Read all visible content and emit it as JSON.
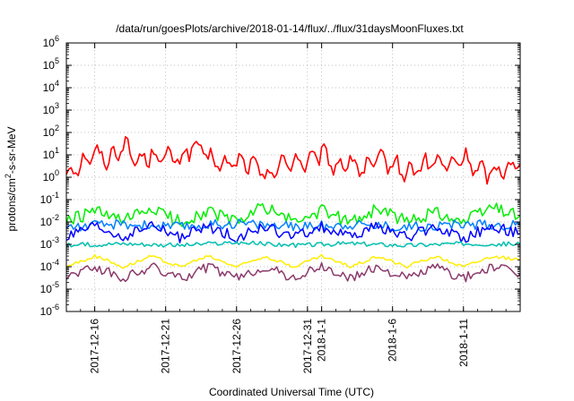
{
  "chart_data": {
    "type": "line",
    "title": "/data/run/goesPlots/archive/2018-01-14/flux/../flux/31daysMoonFluxes.txt",
    "xlabel": "Coordinated Universal Time (UTC)",
    "ylabel": "protons/cm2-s-sr-MeV",
    "y_scale": "log",
    "ylim": [
      1e-06,
      1000000.0
    ],
    "y_ticks": [
      {
        "exp": "-6",
        "value": 1e-06
      },
      {
        "exp": "-5",
        "value": 1e-05
      },
      {
        "exp": "-4",
        "value": 0.0001
      },
      {
        "exp": "-3",
        "value": 0.001
      },
      {
        "exp": "-2",
        "value": 0.01
      },
      {
        "exp": "-1",
        "value": 0.1
      },
      {
        "exp": "0",
        "value": 1
      },
      {
        "exp": "1",
        "value": 10
      },
      {
        "exp": "2",
        "value": 100
      },
      {
        "exp": "3",
        "value": 1000
      },
      {
        "exp": "4",
        "value": 10000
      },
      {
        "exp": "5",
        "value": 100000
      },
      {
        "exp": "6",
        "value": 1000000
      }
    ],
    "xlim": [
      "2017-12-14",
      "2018-01-15"
    ],
    "x_ticks": [
      {
        "label": "2017-12-16",
        "date": "2017-12-16"
      },
      {
        "label": "2017-12-21",
        "date": "2017-12-21"
      },
      {
        "label": "2017-12-26",
        "date": "2017-12-26"
      },
      {
        "label": "2017-12-31",
        "date": "2017-12-31"
      },
      {
        "label": "2018-1-1",
        "date": "2018-01-01"
      },
      {
        "label": "2018-1-6",
        "date": "2018-01-06"
      },
      {
        "label": "2018-1-11",
        "date": "2018-01-11"
      }
    ],
    "grid": true,
    "series": [
      {
        "color": "#ff0000",
        "values": [
          {
            "x": "2017-12-14",
            "y": 1.5
          },
          {
            "x": "2017-12-15",
            "y": 4
          },
          {
            "x": "2017-12-16",
            "y": 12
          },
          {
            "x": "2017-12-17",
            "y": 6
          },
          {
            "x": "2017-12-18",
            "y": 30
          },
          {
            "x": "2017-12-19",
            "y": 5
          },
          {
            "x": "2017-12-20",
            "y": 10
          },
          {
            "x": "2017-12-21",
            "y": 8
          },
          {
            "x": "2017-12-22",
            "y": 6
          },
          {
            "x": "2017-12-23",
            "y": 28
          },
          {
            "x": "2017-12-24",
            "y": 8
          },
          {
            "x": "2017-12-25",
            "y": 3
          },
          {
            "x": "2017-12-26",
            "y": 5
          },
          {
            "x": "2017-12-27",
            "y": 4
          },
          {
            "x": "2017-12-28",
            "y": 1.2
          },
          {
            "x": "2017-12-29",
            "y": 3
          },
          {
            "x": "2017-12-30",
            "y": 6
          },
          {
            "x": "2017-12-31",
            "y": 4
          },
          {
            "x": "2018-01-01",
            "y": 12
          },
          {
            "x": "2018-01-02",
            "y": 3
          },
          {
            "x": "2018-01-03",
            "y": 5
          },
          {
            "x": "2018-01-04",
            "y": 2
          },
          {
            "x": "2018-01-05",
            "y": 6
          },
          {
            "x": "2018-01-06",
            "y": 4
          },
          {
            "x": "2018-01-07",
            "y": 1.5
          },
          {
            "x": "2018-01-08",
            "y": 3
          },
          {
            "x": "2018-01-09",
            "y": 5
          },
          {
            "x": "2018-01-10",
            "y": 3
          },
          {
            "x": "2018-01-11",
            "y": 8
          },
          {
            "x": "2018-01-12",
            "y": 2
          },
          {
            "x": "2018-01-13",
            "y": 1.5
          },
          {
            "x": "2018-01-14",
            "y": 3
          },
          {
            "x": "2018-01-15",
            "y": 4
          }
        ]
      },
      {
        "color": "#00ee00",
        "values": [
          {
            "x": "2017-12-14",
            "y": 0.01
          },
          {
            "x": "2017-12-16",
            "y": 0.03
          },
          {
            "x": "2017-12-18",
            "y": 0.01
          },
          {
            "x": "2017-12-20",
            "y": 0.04
          },
          {
            "x": "2017-12-22",
            "y": 0.01
          },
          {
            "x": "2017-12-24",
            "y": 0.03
          },
          {
            "x": "2017-12-26",
            "y": 0.01
          },
          {
            "x": "2017-12-28",
            "y": 0.05
          },
          {
            "x": "2017-12-30",
            "y": 0.01
          },
          {
            "x": "2018-01-01",
            "y": 0.03
          },
          {
            "x": "2018-01-03",
            "y": 0.01
          },
          {
            "x": "2018-01-05",
            "y": 0.04
          },
          {
            "x": "2018-01-07",
            "y": 0.01
          },
          {
            "x": "2018-01-09",
            "y": 0.03
          },
          {
            "x": "2018-01-11",
            "y": 0.01
          },
          {
            "x": "2018-01-13",
            "y": 0.05
          },
          {
            "x": "2018-01-15",
            "y": 0.02
          }
        ]
      },
      {
        "color": "#0080ff",
        "values": [
          {
            "x": "2017-12-14",
            "y": 0.006
          },
          {
            "x": "2017-12-18",
            "y": 0.008
          },
          {
            "x": "2017-12-22",
            "y": 0.006
          },
          {
            "x": "2017-12-26",
            "y": 0.009
          },
          {
            "x": "2017-12-30",
            "y": 0.006
          },
          {
            "x": "2018-01-03",
            "y": 0.008
          },
          {
            "x": "2018-01-07",
            "y": 0.006
          },
          {
            "x": "2018-01-11",
            "y": 0.008
          },
          {
            "x": "2018-01-15",
            "y": 0.007
          }
        ]
      },
      {
        "color": "#0000ff",
        "values": [
          {
            "x": "2017-12-14",
            "y": 0.002
          },
          {
            "x": "2017-12-16",
            "y": 0.006
          },
          {
            "x": "2017-12-18",
            "y": 0.002
          },
          {
            "x": "2017-12-20",
            "y": 0.007
          },
          {
            "x": "2017-12-22",
            "y": 0.002
          },
          {
            "x": "2017-12-24",
            "y": 0.006
          },
          {
            "x": "2017-12-26",
            "y": 0.002
          },
          {
            "x": "2017-12-28",
            "y": 0.006
          },
          {
            "x": "2017-12-30",
            "y": 0.002
          },
          {
            "x": "2018-01-01",
            "y": 0.006
          },
          {
            "x": "2018-01-03",
            "y": 0.002
          },
          {
            "x": "2018-01-05",
            "y": 0.007
          },
          {
            "x": "2018-01-07",
            "y": 0.002
          },
          {
            "x": "2018-01-09",
            "y": 0.006
          },
          {
            "x": "2018-01-11",
            "y": 0.002
          },
          {
            "x": "2018-01-13",
            "y": 0.006
          },
          {
            "x": "2018-01-15",
            "y": 0.003
          }
        ]
      },
      {
        "color": "#00c0b0",
        "values": [
          {
            "x": "2017-12-14",
            "y": 0.0009
          },
          {
            "x": "2017-12-18",
            "y": 0.0011
          },
          {
            "x": "2017-12-22",
            "y": 0.0009
          },
          {
            "x": "2017-12-26",
            "y": 0.0012
          },
          {
            "x": "2017-12-30",
            "y": 0.0009
          },
          {
            "x": "2018-01-03",
            "y": 0.0011
          },
          {
            "x": "2018-01-07",
            "y": 0.0009
          },
          {
            "x": "2018-01-11",
            "y": 0.0011
          },
          {
            "x": "2018-01-15",
            "y": 0.001
          }
        ]
      },
      {
        "color": "#ffee00",
        "values": [
          {
            "x": "2017-12-14",
            "y": 0.0001
          },
          {
            "x": "2017-12-16",
            "y": 0.0003
          },
          {
            "x": "2017-12-18",
            "y": 0.0001
          },
          {
            "x": "2017-12-20",
            "y": 0.0003
          },
          {
            "x": "2017-12-22",
            "y": 0.0001
          },
          {
            "x": "2017-12-24",
            "y": 0.0003
          },
          {
            "x": "2017-12-26",
            "y": 0.0001
          },
          {
            "x": "2017-12-28",
            "y": 0.0003
          },
          {
            "x": "2017-12-30",
            "y": 0.0001
          },
          {
            "x": "2018-01-01",
            "y": 0.0003
          },
          {
            "x": "2018-01-03",
            "y": 0.0001
          },
          {
            "x": "2018-01-05",
            "y": 0.0003
          },
          {
            "x": "2018-01-07",
            "y": 0.0001
          },
          {
            "x": "2018-01-09",
            "y": 0.0003
          },
          {
            "x": "2018-01-11",
            "y": 0.0001
          },
          {
            "x": "2018-01-13",
            "y": 0.0003
          },
          {
            "x": "2018-01-15",
            "y": 0.0002
          }
        ]
      },
      {
        "color": "#8b3a6b",
        "values": [
          {
            "x": "2017-12-14",
            "y": 4e-05
          },
          {
            "x": "2017-12-16",
            "y": 0.0001
          },
          {
            "x": "2017-12-18",
            "y": 3e-05
          },
          {
            "x": "2017-12-20",
            "y": 0.0001
          },
          {
            "x": "2017-12-22",
            "y": 3e-05
          },
          {
            "x": "2017-12-24",
            "y": 0.0001
          },
          {
            "x": "2017-12-26",
            "y": 3e-05
          },
          {
            "x": "2017-12-28",
            "y": 0.0001
          },
          {
            "x": "2017-12-30",
            "y": 3e-05
          },
          {
            "x": "2018-01-01",
            "y": 0.0001
          },
          {
            "x": "2018-01-03",
            "y": 3e-05
          },
          {
            "x": "2018-01-05",
            "y": 0.0001
          },
          {
            "x": "2018-01-07",
            "y": 3e-05
          },
          {
            "x": "2018-01-09",
            "y": 0.0001
          },
          {
            "x": "2018-01-11",
            "y": 3e-05
          },
          {
            "x": "2018-01-13",
            "y": 0.0001
          },
          {
            "x": "2018-01-15",
            "y": 5e-05
          }
        ]
      }
    ]
  }
}
